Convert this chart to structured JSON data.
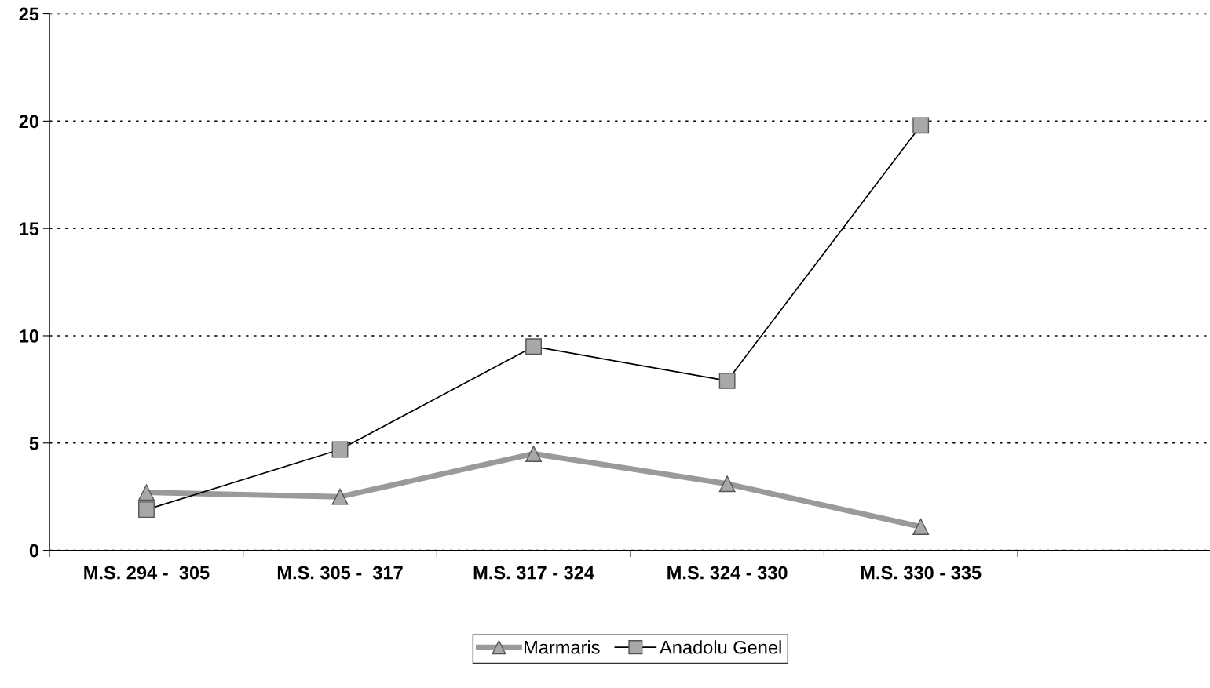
{
  "chart_data": {
    "type": "line",
    "categories": [
      "M.S. 294 -  305",
      "M.S. 305 -  317",
      "M.S. 317 - 324",
      "M.S. 324 - 330",
      "M.S. 330 - 335",
      null
    ],
    "series": [
      {
        "name": "Marmaris",
        "color": "#9a9a9a",
        "marker": "triangle",
        "values": [
          2.7,
          2.5,
          4.5,
          3.1,
          1.1,
          null
        ]
      },
      {
        "name": "Anadolu Genel",
        "color": "#000000",
        "marker": "square",
        "values": [
          1.9,
          4.7,
          9.5,
          7.9,
          19.8,
          null
        ]
      }
    ],
    "ylim": [
      0,
      25
    ],
    "yticks": [
      0,
      5,
      10,
      15,
      20,
      25
    ],
    "grid": "y",
    "line_style": "solid",
    "legend": "bottom"
  }
}
